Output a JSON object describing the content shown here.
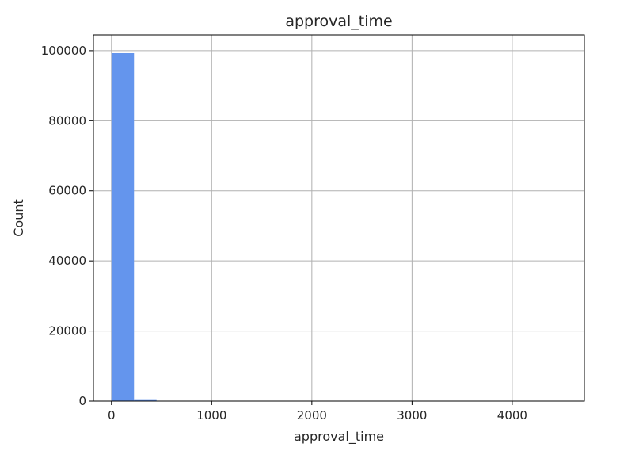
{
  "chart_data": {
    "type": "bar",
    "title": "approval_time",
    "xlabel": "approval_time",
    "ylabel": "Count",
    "xlim": [
      -180,
      4720
    ],
    "ylim": [
      0,
      104500
    ],
    "x_ticks": [
      0,
      1000,
      2000,
      3000,
      4000
    ],
    "y_ticks": [
      0,
      20000,
      40000,
      60000,
      80000,
      100000
    ],
    "grid": true,
    "bar_color": "#6495ed",
    "series": [
      {
        "bins": [
          {
            "x0": 0,
            "x1": 225,
            "count": 99300
          },
          {
            "x0": 225,
            "x1": 450,
            "count": 300
          },
          {
            "x0": 450,
            "x1": 675,
            "count": 40
          },
          {
            "x0": 675,
            "x1": 900,
            "count": 10
          },
          {
            "x0": 900,
            "x1": 1125,
            "count": 3
          },
          {
            "x0": 1125,
            "x1": 1350,
            "count": 2
          },
          {
            "x0": 1350,
            "x1": 1575,
            "count": 1
          },
          {
            "x0": 1575,
            "x1": 1800,
            "count": 1
          },
          {
            "x0": 1800,
            "x1": 2025,
            "count": 0
          },
          {
            "x0": 2025,
            "x1": 2250,
            "count": 0
          },
          {
            "x0": 2250,
            "x1": 2475,
            "count": 0
          },
          {
            "x0": 2475,
            "x1": 2700,
            "count": 0
          },
          {
            "x0": 2700,
            "x1": 2925,
            "count": 0
          },
          {
            "x0": 2925,
            "x1": 3150,
            "count": 0
          },
          {
            "x0": 3150,
            "x1": 3375,
            "count": 0
          },
          {
            "x0": 3375,
            "x1": 3600,
            "count": 0
          },
          {
            "x0": 3600,
            "x1": 3825,
            "count": 0
          },
          {
            "x0": 3825,
            "x1": 4050,
            "count": 0
          },
          {
            "x0": 4050,
            "x1": 4275,
            "count": 0
          },
          {
            "x0": 4275,
            "x1": 4500,
            "count": 1
          }
        ]
      }
    ]
  }
}
